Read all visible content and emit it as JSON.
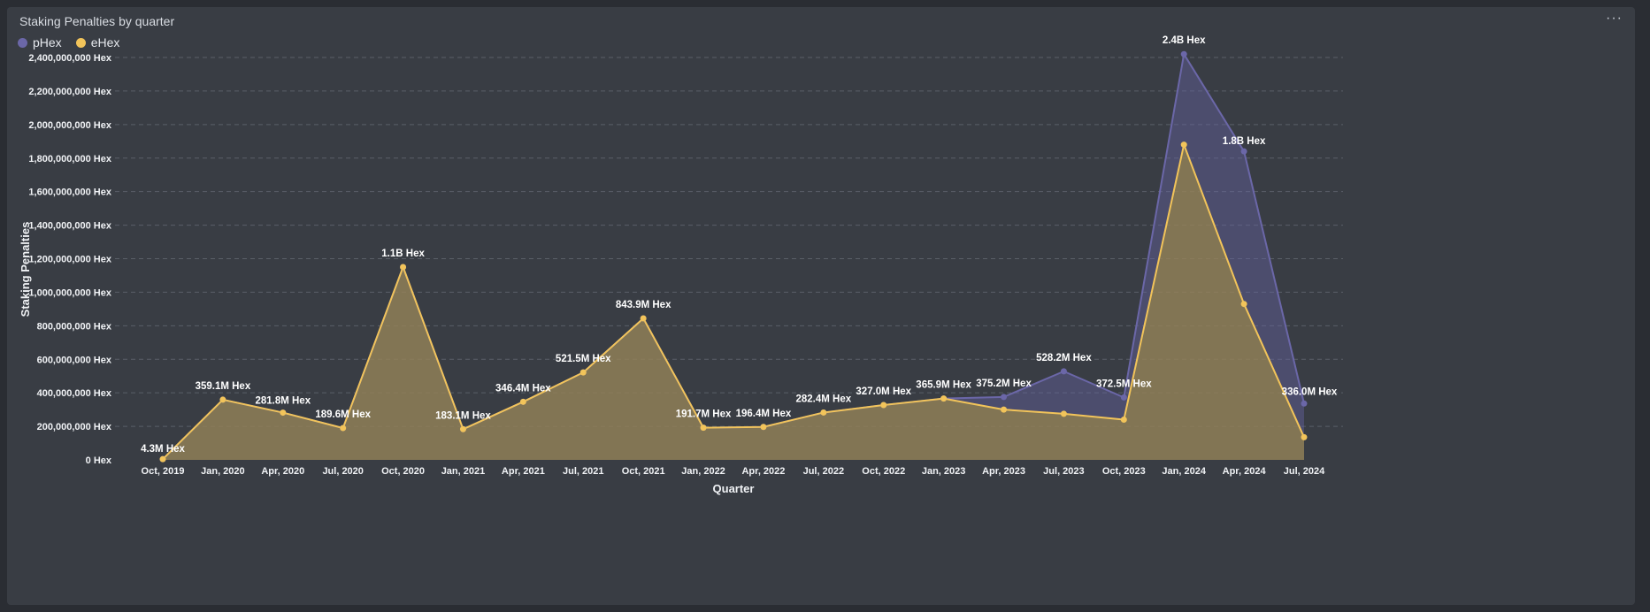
{
  "panel": {
    "title": "Staking Penalties by quarter",
    "menu_label": "···"
  },
  "chart_data": {
    "type": "area",
    "title": "Staking Penalties by quarter",
    "xlabel": "Quarter",
    "ylabel": "Staking Penalties",
    "ylim": [
      0,
      2400000000
    ],
    "yticks": [
      {
        "value": 0,
        "label": "0 Hex"
      },
      {
        "value": 200000000,
        "label": "200,000,000 Hex"
      },
      {
        "value": 400000000,
        "label": "400,000,000 Hex"
      },
      {
        "value": 600000000,
        "label": "600,000,000 Hex"
      },
      {
        "value": 800000000,
        "label": "800,000,000 Hex"
      },
      {
        "value": 1000000000,
        "label": "1,000,000,000 Hex"
      },
      {
        "value": 1200000000,
        "label": "1,200,000,000 Hex"
      },
      {
        "value": 1400000000,
        "label": "1,400,000,000 Hex"
      },
      {
        "value": 1600000000,
        "label": "1,600,000,000 Hex"
      },
      {
        "value": 1800000000,
        "label": "1,800,000,000 Hex"
      },
      {
        "value": 2000000000,
        "label": "2,000,000,000 Hex"
      },
      {
        "value": 2200000000,
        "label": "2,200,000,000 Hex"
      },
      {
        "value": 2400000000,
        "label": "2,400,000,000 Hex"
      }
    ],
    "grid": true,
    "legend_position": "top-left",
    "categories": [
      "Oct, 2019",
      "Jan, 2020",
      "Apr, 2020",
      "Jul, 2020",
      "Oct, 2020",
      "Jan, 2021",
      "Apr, 2021",
      "Jul, 2021",
      "Oct, 2021",
      "Jan, 2022",
      "Apr, 2022",
      "Jul, 2022",
      "Oct, 2022",
      "Jan, 2023",
      "Apr, 2023",
      "Jul, 2023",
      "Oct, 2023",
      "Jan, 2024",
      "Apr, 2024",
      "Jul, 2024"
    ],
    "series": [
      {
        "name": "pHex",
        "color": "#6b67a8",
        "values": [
          4300000,
          359100000,
          281800000,
          189600000,
          1150000000,
          183100000,
          346400000,
          521500000,
          843900000,
          191700000,
          196400000,
          282400000,
          327000000,
          365900000,
          375200000,
          528200000,
          372500000,
          2420000000,
          1840000000,
          336000000
        ],
        "labels": [
          "4.3M Hex",
          "359.1M Hex",
          "281.8M Hex",
          "189.6M Hex",
          "1.1B Hex",
          "183.1M Hex",
          "346.4M Hex",
          "521.5M Hex",
          "843.9M Hex",
          "191.7M Hex",
          "196.4M Hex",
          "282.4M Hex",
          "327.0M Hex",
          "365.9M Hex",
          "375.2M Hex",
          "528.2M Hex",
          "372.5M Hex",
          "2.4B Hex",
          "1.8B Hex",
          "336.0M Hex"
        ]
      },
      {
        "name": "eHex",
        "color": "#f2c45a",
        "values": [
          4300000,
          359100000,
          281800000,
          189600000,
          1150000000,
          183100000,
          346400000,
          521500000,
          843900000,
          191700000,
          196400000,
          282400000,
          327000000,
          365900000,
          300000000,
          275000000,
          240000000,
          1880000000,
          930000000,
          135000000
        ]
      }
    ]
  }
}
